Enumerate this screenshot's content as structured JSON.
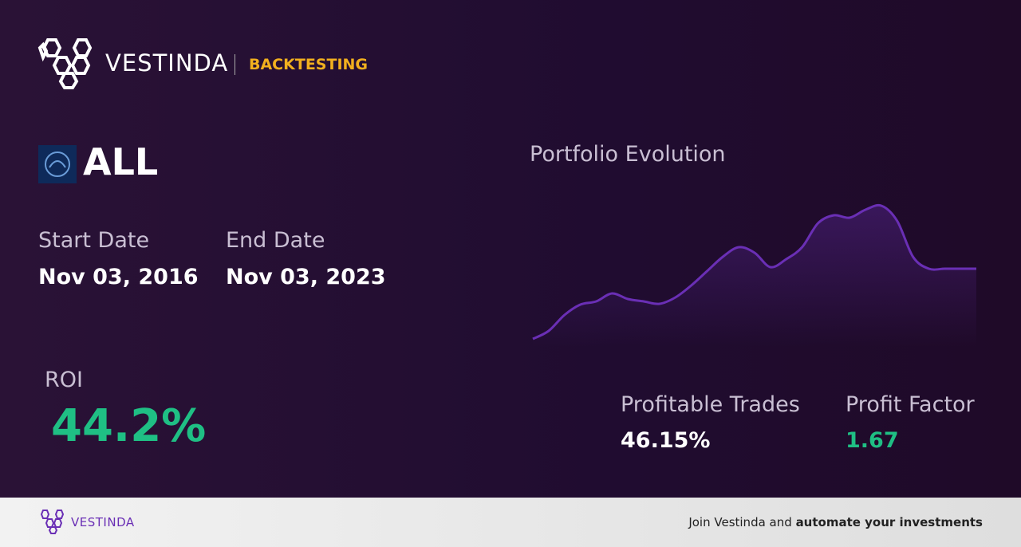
{
  "header": {
    "brand": "VESTINDA",
    "section": "BACKTESTING"
  },
  "asset": {
    "ticker": "ALL"
  },
  "dates": {
    "start_label": "Start Date",
    "start": "Nov 03, 2016",
    "end_label": "End Date",
    "end": "Nov 03, 2023"
  },
  "roi": {
    "label": "ROI",
    "value": "44.2%"
  },
  "stats": {
    "profitable_label": "Profitable Trades",
    "profitable": "46.15%",
    "factor_label": "Profit Factor",
    "factor": "1.67"
  },
  "chart_data": {
    "type": "line",
    "title": "Portfolio Evolution",
    "color": "#6a2fb5",
    "values": [
      0,
      10,
      30,
      43,
      47,
      57,
      50,
      47,
      44,
      52,
      67,
      85,
      103,
      115,
      108,
      90,
      100,
      115,
      145,
      155,
      152,
      162,
      167,
      148,
      103,
      88,
      88,
      88,
      88
    ]
  },
  "footer": {
    "brand": "VESTINDA",
    "text": "Join Vestinda and",
    "strong": "automate your investments"
  }
}
